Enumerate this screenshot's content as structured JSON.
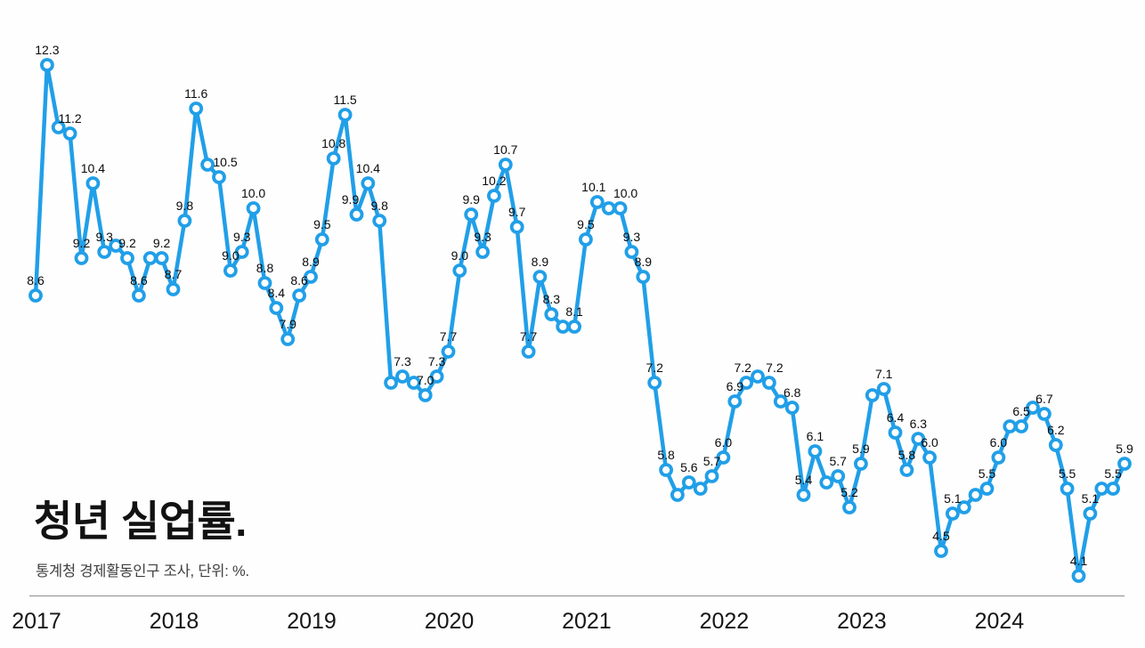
{
  "title": "청년 실업률.",
  "subtitle": "통계청 경제활동인구 조사, 단위: %.",
  "colors": {
    "line": "#219fe8",
    "marker_fill": "#ffffff",
    "data_label": "#0b0b0b",
    "axis_line": "#9a9a9a",
    "tick_label": "#161616",
    "title": "#121212",
    "subtitle": "#3f3f3f",
    "background": "#fefefe"
  },
  "chart_data": {
    "type": "line",
    "title": "청년 실업률.",
    "subtitle": "통계청 경제활동인구 조사, 단위: %.",
    "unit": "%",
    "frequency": "monthly",
    "start_month": "2017-01",
    "end_month": "2024-12",
    "x_tick_labels": [
      "2017",
      "2018",
      "2019",
      "2020",
      "2021",
      "2022",
      "2023",
      "2024"
    ],
    "ylim": [
      3.6,
      12.8
    ],
    "grid": false,
    "legend": false,
    "y_axis_shown": false,
    "series": [
      {
        "name": "청년 실업률",
        "values": [
          8.6,
          12.3,
          11.3,
          11.2,
          9.2,
          10.4,
          9.3,
          9.4,
          9.2,
          8.6,
          9.2,
          9.2,
          8.7,
          9.8,
          11.6,
          10.7,
          10.5,
          9.0,
          9.3,
          10.0,
          8.8,
          8.4,
          7.9,
          8.6,
          8.9,
          9.5,
          10.8,
          11.5,
          9.9,
          10.4,
          9.8,
          7.2,
          7.3,
          7.2,
          7.0,
          7.3,
          7.7,
          9.0,
          9.9,
          9.3,
          10.2,
          10.7,
          9.7,
          7.7,
          8.9,
          8.3,
          8.1,
          8.1,
          9.5,
          10.1,
          10.0,
          10.0,
          9.3,
          8.9,
          7.2,
          5.8,
          5.4,
          5.6,
          5.5,
          5.7,
          6.0,
          6.9,
          7.2,
          7.3,
          7.2,
          6.9,
          6.8,
          5.4,
          6.1,
          5.6,
          5.7,
          5.2,
          5.9,
          7.0,
          7.1,
          6.4,
          5.8,
          6.3,
          6.0,
          4.5,
          5.1,
          5.2,
          5.4,
          5.5,
          6.0,
          6.5,
          6.5,
          6.8,
          6.7,
          6.2,
          5.5,
          4.1,
          5.1,
          5.5,
          5.5,
          5.9
        ],
        "point_labels": [
          "8.6",
          "12.3",
          null,
          "11.2",
          "9.2",
          "10.4",
          "9.3",
          null,
          "9.2",
          "8.6",
          null,
          "9.2",
          "8.7",
          "9.8",
          "11.6",
          null,
          "10.5",
          "9.0",
          "9.3",
          "10.0",
          "8.8",
          "8.4",
          "7.9",
          "8.6",
          "8.9",
          "9.5",
          "10.8",
          "11.5",
          "9.9",
          "10.4",
          "9.8",
          null,
          "7.3",
          null,
          "7.0",
          "7.3",
          "7.7",
          "9.0",
          "9.9",
          "9.3",
          "10.2",
          "10.7",
          "9.7",
          "7.7",
          "8.9",
          "8.3",
          null,
          "8.1",
          "9.5",
          "10.1",
          null,
          "10.0",
          "9.3",
          "8.9",
          "7.2",
          "5.8",
          null,
          "5.6",
          null,
          "5.7",
          "6.0",
          "6.9",
          "7.2",
          null,
          "7.2",
          null,
          "6.8",
          "5.4",
          "6.1",
          null,
          "5.7",
          "5.2",
          "5.9",
          null,
          "7.1",
          "6.4",
          "5.8",
          "6.3",
          "6.0",
          "4.5",
          "5.1",
          null,
          null,
          "5.5",
          "6.0",
          null,
          "6.5",
          null,
          "6.7",
          "6.2",
          "5.5",
          "4.1",
          "5.1",
          null,
          "5.5",
          "5.9"
        ]
      }
    ]
  }
}
